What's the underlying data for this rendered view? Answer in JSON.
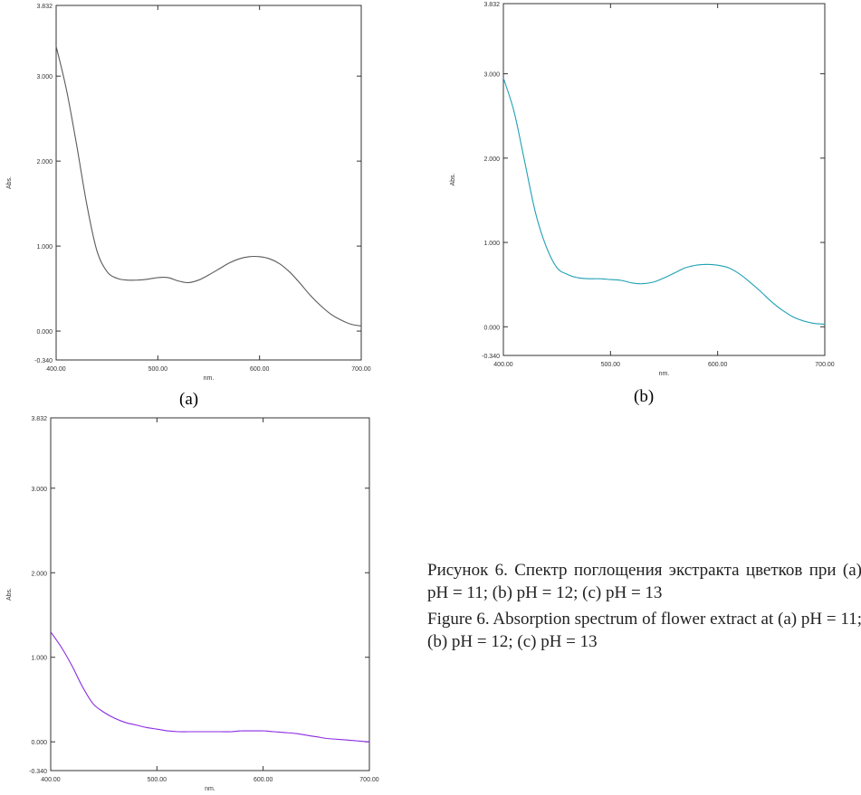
{
  "caption": {
    "ru": "Рисунок 6. Спектр поглощения экстракта цветков при (a) pH = 11; (b) pH = 12; (c) pH = 13",
    "en": "Figure 6. Absorption spectrum of flower extract at (a) pH = 11; (b) pH = 12; (c) pH = 13"
  },
  "chart_data": [
    {
      "panel_label": "(a)",
      "type": "line",
      "xlabel": "nm.",
      "ylabel": "Abs.",
      "xlim": [
        400,
        700
      ],
      "ylim": [
        -0.34,
        3.832
      ],
      "x_ticks": [
        "400.00",
        "500.00",
        "600.00",
        "700.00"
      ],
      "y_ticks": [
        "-0.340",
        "0.000",
        "1.000",
        "2.000",
        "3.000",
        "3.832"
      ],
      "grid": false,
      "color": "#5a5a5a",
      "series": [
        {
          "x": [
            400,
            410,
            420,
            430,
            440,
            450,
            460,
            470,
            480,
            490,
            500,
            510,
            520,
            530,
            540,
            550,
            560,
            570,
            580,
            590,
            600,
            610,
            620,
            630,
            640,
            650,
            660,
            670,
            680,
            690,
            700
          ],
          "y": [
            3.35,
            2.85,
            2.2,
            1.5,
            0.95,
            0.7,
            0.62,
            0.6,
            0.6,
            0.61,
            0.63,
            0.63,
            0.59,
            0.57,
            0.6,
            0.66,
            0.73,
            0.8,
            0.85,
            0.875,
            0.875,
            0.85,
            0.79,
            0.69,
            0.56,
            0.42,
            0.3,
            0.2,
            0.13,
            0.08,
            0.06
          ]
        }
      ]
    },
    {
      "panel_label": "(b)",
      "type": "line",
      "xlabel": "nm.",
      "ylabel": "Abs.",
      "xlim": [
        400,
        700
      ],
      "ylim": [
        -0.34,
        3.832
      ],
      "x_ticks": [
        "400.00",
        "500.00",
        "600.00",
        "700.00"
      ],
      "y_ticks": [
        "-0.340",
        "0.000",
        "1.000",
        "2.000",
        "3.000",
        "3.832"
      ],
      "grid": false,
      "color": "#1fa0b4",
      "series": [
        {
          "x": [
            400,
            410,
            420,
            430,
            440,
            450,
            460,
            470,
            480,
            490,
            500,
            510,
            520,
            530,
            540,
            550,
            560,
            570,
            580,
            590,
            600,
            610,
            620,
            630,
            640,
            650,
            660,
            670,
            680,
            690,
            700
          ],
          "y": [
            2.95,
            2.55,
            1.95,
            1.35,
            0.95,
            0.7,
            0.62,
            0.58,
            0.57,
            0.57,
            0.56,
            0.55,
            0.52,
            0.51,
            0.53,
            0.58,
            0.64,
            0.7,
            0.73,
            0.74,
            0.73,
            0.7,
            0.63,
            0.53,
            0.42,
            0.3,
            0.2,
            0.12,
            0.07,
            0.04,
            0.03
          ]
        }
      ]
    },
    {
      "panel_label": "",
      "type": "line",
      "xlabel": "nm.",
      "ylabel": "Abs.",
      "xlim": [
        400,
        700
      ],
      "ylim": [
        -0.34,
        3.832
      ],
      "x_ticks": [
        "400.00",
        "500.00",
        "600.00",
        "700.00"
      ],
      "y_ticks": [
        "-0.340",
        "0.000",
        "1.000",
        "2.000",
        "3.000",
        "3.832"
      ],
      "grid": false,
      "color": "#8a2be2",
      "series": [
        {
          "x": [
            400,
            410,
            420,
            430,
            440,
            450,
            460,
            470,
            480,
            490,
            500,
            510,
            520,
            530,
            540,
            550,
            560,
            570,
            580,
            590,
            600,
            610,
            620,
            630,
            640,
            650,
            660,
            670,
            680,
            690,
            700
          ],
          "y": [
            1.3,
            1.12,
            0.9,
            0.65,
            0.45,
            0.35,
            0.28,
            0.23,
            0.2,
            0.17,
            0.15,
            0.13,
            0.12,
            0.12,
            0.12,
            0.12,
            0.12,
            0.12,
            0.13,
            0.13,
            0.13,
            0.12,
            0.11,
            0.1,
            0.08,
            0.06,
            0.04,
            0.03,
            0.02,
            0.01,
            0.0
          ]
        }
      ]
    }
  ]
}
